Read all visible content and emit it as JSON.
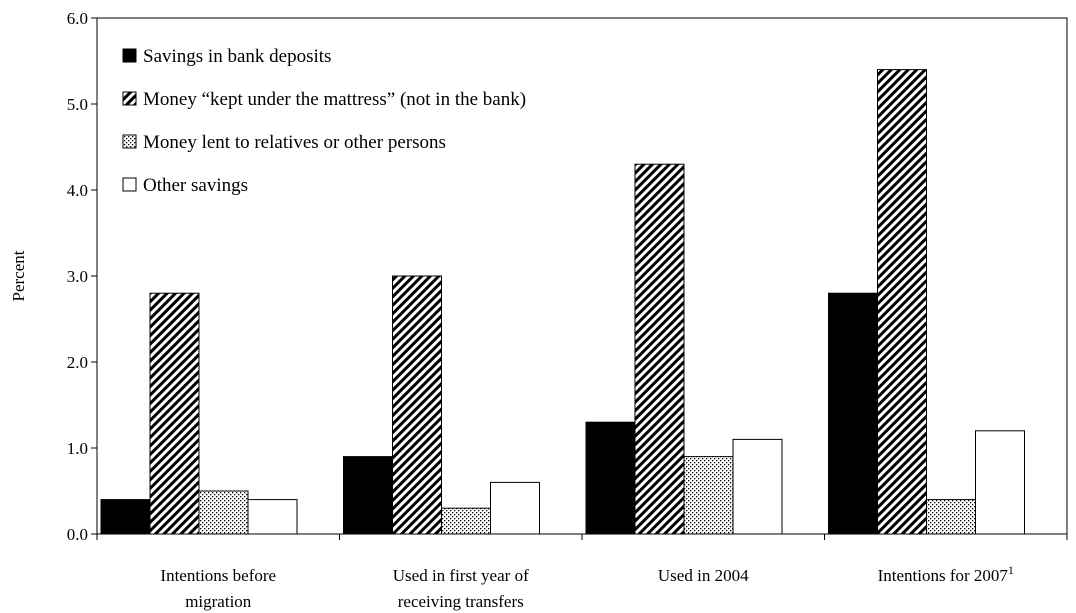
{
  "chart_data": {
    "type": "bar",
    "ylabel": "Percent",
    "ylim": [
      0,
      6
    ],
    "yticks": [
      "0.0",
      "1.0",
      "2.0",
      "3.0",
      "4.0",
      "5.0",
      "6.0"
    ],
    "categories": [
      {
        "lines": [
          "Intentions before",
          "migration"
        ],
        "sup": ""
      },
      {
        "lines": [
          "Used in first year of",
          "receiving transfers"
        ],
        "sup": ""
      },
      {
        "lines": [
          "Used in 2004"
        ],
        "sup": ""
      },
      {
        "lines": [
          "Intentions for 2007"
        ],
        "sup": "1"
      }
    ],
    "series": [
      {
        "name": "Savings in bank deposits",
        "pattern": "solid",
        "values": [
          0.4,
          0.9,
          1.3,
          2.8
        ]
      },
      {
        "name": "Money “kept under the mattress” (not in the bank)",
        "pattern": "diagonal",
        "values": [
          2.8,
          3.0,
          4.3,
          5.4
        ]
      },
      {
        "name": "Money lent to relatives or other persons",
        "pattern": "dots",
        "values": [
          0.5,
          0.3,
          0.9,
          0.4
        ]
      },
      {
        "name": "Other savings",
        "pattern": "empty",
        "values": [
          0.4,
          0.6,
          1.1,
          1.2
        ]
      }
    ],
    "legend_position": "top-left",
    "grid": false,
    "colors": {
      "axis": "#000000",
      "solid": "#000000",
      "empty": "#ffffff"
    }
  }
}
